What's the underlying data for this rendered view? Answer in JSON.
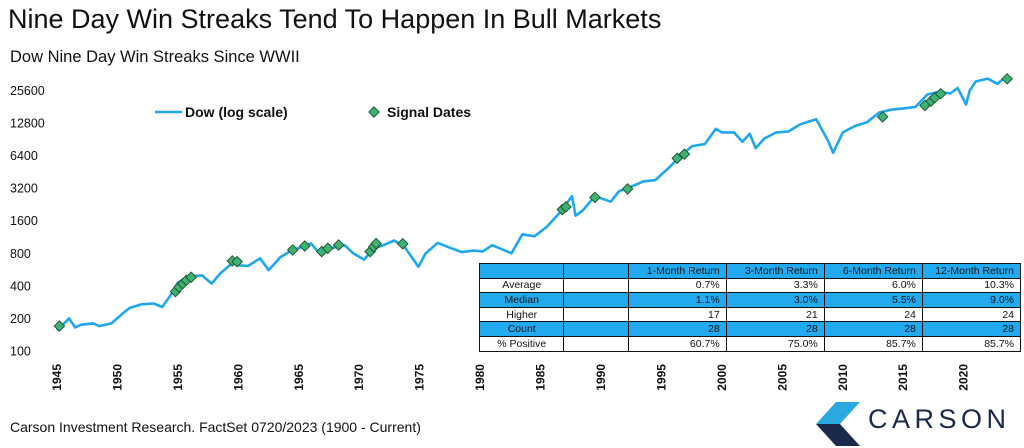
{
  "title": "Nine Day Win Streaks Tend To Happen In Bull Markets",
  "subtitle": "Dow Nine Day Win Streaks Since WWII",
  "source": "Carson Investment Research. FactSet 0720/2023 (1900 - Current)",
  "logo": {
    "text": "CARSON"
  },
  "colors": {
    "line": "#1ea7f0",
    "marker": "#3cb371",
    "table_header": "#21aaf0"
  },
  "chart_data": {
    "type": "line",
    "y_scale": "log",
    "ylim": [
      100,
      32000
    ],
    "xlim": [
      1945,
      2024
    ],
    "yticks": [
      "25600",
      "12800",
      "6400",
      "3200",
      "1600",
      "800",
      "400",
      "200",
      "100"
    ],
    "xticks": [
      "1945",
      "1950",
      "1955",
      "1960",
      "1965",
      "1970",
      "1975",
      "1980",
      "1985",
      "1990",
      "1995",
      "2000",
      "2005",
      "2010",
      "2015",
      "2020"
    ],
    "legend": {
      "position": "top-left",
      "line_label": "Dow (log scale)",
      "marker_label": "Signal Dates"
    },
    "series": [
      {
        "name": "Dow (log scale)",
        "x": [
          1945.0,
          1946.0,
          1946.5,
          1947.0,
          1948.0,
          1948.5,
          1949.5,
          1950.5,
          1951.0,
          1952.0,
          1953.0,
          1953.7,
          1954.5,
          1955.0,
          1956.0,
          1957.0,
          1957.8,
          1958.5,
          1959.5,
          1960.0,
          1960.8,
          1961.8,
          1962.5,
          1963.5,
          1964.5,
          1965.5,
          1966.0,
          1966.8,
          1967.8,
          1968.8,
          1969.5,
          1970.4,
          1971.2,
          1972.0,
          1972.9,
          1973.8,
          1974.9,
          1975.5,
          1976.5,
          1977.5,
          1978.5,
          1979.5,
          1980.2,
          1981.0,
          1982.6,
          1983.5,
          1984.5,
          1985.5,
          1986.5,
          1987.6,
          1987.9,
          1988.5,
          1989.5,
          1990.8,
          1991.5,
          1992.5,
          1993.5,
          1994.5,
          1995.5,
          1996.5,
          1997.5,
          1998.6,
          1999.5,
          2000.0,
          2001.0,
          2001.7,
          2002.3,
          2002.8,
          2003.5,
          2004.5,
          2005.5,
          2006.5,
          2007.8,
          2008.8,
          2009.2,
          2010.0,
          2011.0,
          2012.0,
          2013.0,
          2014.0,
          2015.0,
          2016.0,
          2017.0,
          2018.0,
          2018.9,
          2019.5,
          2020.2,
          2020.5,
          2021.0,
          2022.0,
          2022.8,
          2023.5
        ],
        "values": [
          155,
          200,
          165,
          175,
          180,
          170,
          180,
          225,
          250,
          270,
          275,
          255,
          340,
          430,
          490,
          500,
          420,
          520,
          650,
          620,
          610,
          720,
          560,
          740,
          860,
          930,
          990,
          780,
          900,
          950,
          800,
          700,
          890,
          950,
          1050,
          900,
          600,
          800,
          1000,
          900,
          820,
          850,
          830,
          950,
          800,
          1200,
          1150,
          1400,
          1850,
          2700,
          1780,
          2000,
          2700,
          2400,
          3000,
          3300,
          3700,
          3800,
          4800,
          6200,
          7800,
          8200,
          11300,
          10500,
          10500,
          8600,
          10200,
          7500,
          9200,
          10500,
          10700,
          12500,
          13900,
          8700,
          6800,
          10500,
          12000,
          13000,
          16000,
          17000,
          17500,
          18000,
          23500,
          25000,
          24000,
          27000,
          19000,
          25500,
          31000,
          33000,
          29500,
          34500
        ]
      },
      {
        "name": "Signal Dates",
        "x": [
          1945.2,
          1954.8,
          1955.1,
          1955.4,
          1955.7,
          1956.1,
          1959.5,
          1959.9,
          1964.5,
          1965.5,
          1966.9,
          1967.4,
          1968.3,
          1970.9,
          1971.2,
          1971.4,
          1973.6,
          1986.8,
          1987.1,
          1989.5,
          1992.2,
          1996.3,
          1996.9,
          2013.3,
          2016.8,
          2017.3,
          2017.6,
          2018.1,
          2023.6
        ],
        "values": [
          170,
          355,
          390,
          420,
          450,
          480,
          680,
          670,
          860,
          935,
          830,
          890,
          955,
          830,
          920,
          985,
          980,
          2030,
          2150,
          2630,
          3150,
          6050,
          6600,
          14600,
          18600,
          20400,
          21900,
          23900,
          32800
        ]
      }
    ]
  },
  "table": {
    "headers": [
      "",
      "",
      "1-Month Return",
      "3-Month Return",
      "6-Month Return",
      "12-Month Return"
    ],
    "rows": [
      {
        "label": "Average",
        "values": [
          "0.7%",
          "3.3%",
          "6.0%",
          "10.3%"
        ],
        "shaded": false
      },
      {
        "label": "Median",
        "values": [
          "1.1%",
          "3.0%",
          "5.5%",
          "9.0%"
        ],
        "shaded": true
      },
      {
        "label": "Higher",
        "values": [
          "17",
          "21",
          "24",
          "24"
        ],
        "shaded": false
      },
      {
        "label": "Count",
        "values": [
          "28",
          "28",
          "28",
          "28"
        ],
        "shaded": true
      },
      {
        "label": "% Positive",
        "values": [
          "60.7%",
          "75.0%",
          "85.7%",
          "85.7%"
        ],
        "shaded": false
      }
    ]
  }
}
